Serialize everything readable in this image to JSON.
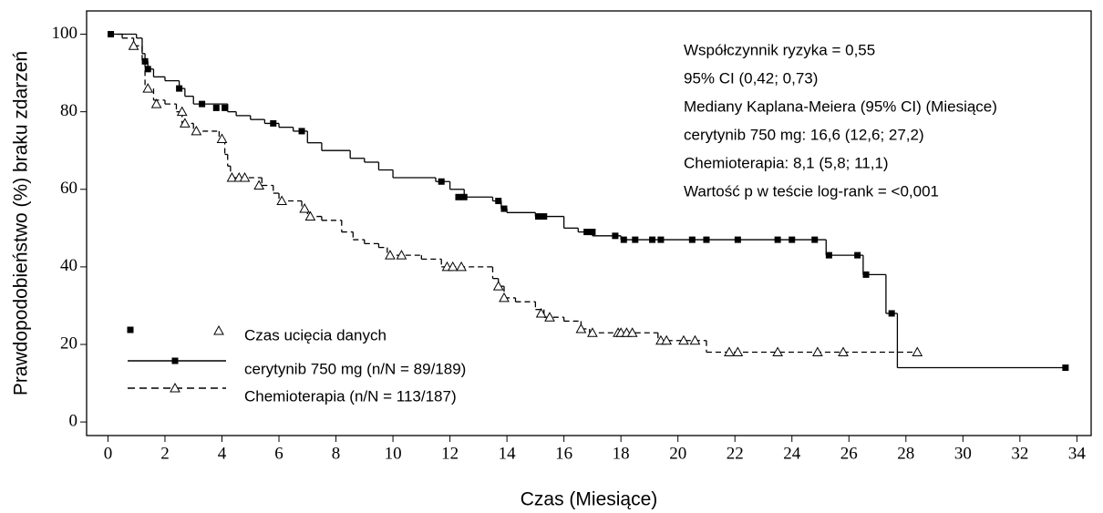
{
  "chart_data": {
    "type": "kaplan-meier",
    "x_label": "Czas (Miesiące)",
    "y_label": "Prawdopodobieństwo (%) braku zdarzeń",
    "xlim": [
      -0.75,
      34.5
    ],
    "ylim": [
      -3.5,
      106
    ],
    "xticks": [
      0,
      2,
      4,
      6,
      8,
      10,
      12,
      14,
      16,
      18,
      20,
      22,
      24,
      26,
      28,
      30,
      32,
      34
    ],
    "yticks": [
      0,
      20,
      40,
      60,
      80,
      100
    ],
    "annotations": [
      "Współczynnik ryzyka = 0,55",
      "95% CI (0,42; 0,73)",
      "Mediany Kaplana-Meiera (95% CI) (Miesiące)",
      "cerytynib 750 mg: 16,6 (12,6; 27,2)",
      "Chemioterapia: 8,1 (5,8; 11,1)",
      "Wartość p w teście log-rank = <0,001"
    ],
    "censor_label": "Czas ucięcia danych",
    "series": [
      {
        "name": "cerytynib 750 mg (n/N = 89/189)",
        "color": "#000000",
        "dashed": false,
        "marker": "square",
        "x": [
          0,
          1,
          1.2,
          1.3,
          1.4,
          1.6,
          2,
          2.5,
          2.7,
          3,
          4.2,
          4.5,
          5,
          5.5,
          6,
          6.5,
          7,
          7.5,
          8.5,
          9,
          9.5,
          10,
          11.5,
          12,
          12.5,
          13.5,
          13.8,
          14,
          15,
          16,
          16.5,
          17,
          18,
          25.2,
          26.5,
          27.3,
          27.7,
          33.6
        ],
        "values": [
          100,
          99,
          95,
          93,
          91,
          89,
          88,
          86,
          84,
          82,
          80,
          79,
          78,
          77,
          76,
          75,
          72,
          70,
          68,
          67,
          65,
          63,
          62,
          60,
          58,
          57,
          55,
          54,
          53,
          50,
          49,
          48,
          47,
          43,
          38,
          28,
          14,
          14
        ],
        "censor_x": [
          0.1,
          1.3,
          1.4,
          2.5,
          3.3,
          3.8,
          4.1,
          5.8,
          6.8,
          11.7,
          12.3,
          12.5,
          13.7,
          13.9,
          15.1,
          15.3,
          16.8,
          17.0,
          17.8,
          18.1,
          18.5,
          19.1,
          19.4,
          20.5,
          21.0,
          22.1,
          23.5,
          24.0,
          24.8,
          25.3,
          26.3,
          26.6,
          27.5,
          33.6
        ],
        "censor_y": [
          100,
          93,
          91,
          86,
          82,
          81,
          81,
          77,
          75,
          62,
          58,
          58,
          57,
          55,
          53,
          53,
          49,
          49,
          48,
          47,
          47,
          47,
          47,
          47,
          47,
          47,
          47,
          47,
          47,
          43,
          43,
          38,
          28,
          14
        ]
      },
      {
        "name": "Chemioterapia (n/N = 113/187)",
        "color": "#000000",
        "dashed": true,
        "marker": "triangle",
        "x": [
          0,
          0.5,
          0.9,
          1.2,
          1.3,
          1.6,
          2,
          2.4,
          2.6,
          3,
          3.9,
          4.1,
          4.2,
          4.3,
          5.4,
          5.8,
          6,
          6.8,
          7,
          7.5,
          8.2,
          8.6,
          9,
          9.5,
          9.8,
          11,
          11.7,
          13.5,
          13.7,
          13.9,
          14.3,
          15,
          15.3,
          16,
          16.6,
          16.9,
          19.3,
          21,
          28.4
        ],
        "values": [
          100,
          99,
          97,
          93,
          86,
          83,
          82,
          80,
          77,
          75,
          73,
          69,
          66,
          63,
          61,
          59,
          57,
          55,
          53,
          52,
          49,
          47,
          46,
          45,
          43,
          42,
          40,
          37,
          35,
          32,
          31,
          29,
          27,
          26,
          24,
          23,
          21,
          18,
          18
        ],
        "censor_x": [
          0.9,
          1.4,
          1.7,
          2.6,
          2.7,
          3.1,
          4.0,
          4.35,
          4.6,
          4.8,
          5.3,
          6.1,
          6.9,
          7.1,
          9.9,
          10.3,
          11.9,
          12.1,
          12.4,
          13.7,
          13.9,
          15.2,
          15.5,
          16.6,
          17.0,
          17.9,
          18.0,
          18.2,
          18.4,
          19.4,
          19.6,
          20.2,
          20.6,
          21.8,
          22.1,
          23.5,
          24.9,
          25.8,
          28.4
        ],
        "censor_y": [
          97,
          86,
          82,
          80,
          77,
          75,
          73,
          63,
          63,
          63,
          61,
          57,
          55,
          53,
          43,
          43,
          40,
          40,
          40,
          35,
          32,
          28,
          27,
          24,
          23,
          23,
          23,
          23,
          23,
          21,
          21,
          21,
          21,
          18,
          18,
          18,
          18,
          18,
          18
        ]
      }
    ]
  }
}
